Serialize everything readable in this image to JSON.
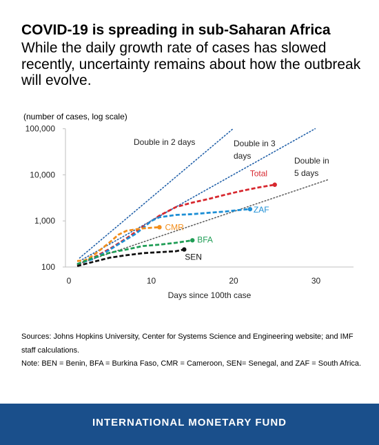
{
  "header": {
    "title": "COVID-19 is spreading in sub-Saharan Africa",
    "subtitle": "While the daily growth rate of cases has slowed recently, uncertainty remains about how the outbreak will evolve."
  },
  "chart_data": {
    "type": "line",
    "ylabel": "(number of cases, log scale)",
    "xlabel": "Days since 100th case",
    "x_ticks": [
      "0",
      "10",
      "20",
      "30"
    ],
    "y_ticks": [
      "100",
      "1,000",
      "10,000",
      "100,000"
    ],
    "xlim": [
      0,
      34
    ],
    "ylim": [
      100,
      100000
    ],
    "yscale": "log",
    "grid": false,
    "reference_lines": [
      {
        "label": "Double in 2 days",
        "doubling_days": 2,
        "color": "#1f5fa8"
      },
      {
        "label": "Double in 3 days",
        "doubling_days": 3,
        "color": "#1f5fa8"
      },
      {
        "label": "Double in 5 days",
        "doubling_days": 5,
        "color": "#606060"
      }
    ],
    "series": [
      {
        "name": "Total",
        "color": "#d7282f",
        "x": [
          1,
          3,
          5,
          7,
          9,
          11,
          13,
          15,
          17,
          19,
          21,
          23,
          25
        ],
        "y": [
          110,
          160,
          250,
          420,
          750,
          1300,
          2000,
          2500,
          3000,
          3700,
          4500,
          5300,
          6100
        ]
      },
      {
        "name": "ZAF",
        "color": "#1e8fd5",
        "x": [
          1,
          3,
          5,
          7,
          8,
          9,
          10,
          11,
          13,
          15,
          17,
          19,
          21,
          22
        ],
        "y": [
          116,
          150,
          240,
          400,
          510,
          700,
          1000,
          1200,
          1350,
          1400,
          1500,
          1600,
          1750,
          1800
        ]
      },
      {
        "name": "CMR",
        "color": "#f28e1c",
        "x": [
          1,
          2,
          3,
          4,
          5,
          6,
          7,
          8,
          9,
          10,
          11
        ],
        "y": [
          135,
          140,
          180,
          250,
          350,
          500,
          610,
          650,
          690,
          710,
          730
        ]
      },
      {
        "name": "BFA",
        "color": "#1f9d55",
        "x": [
          1,
          3,
          5,
          7,
          9,
          11,
          13,
          15
        ],
        "y": [
          115,
          160,
          205,
          240,
          285,
          305,
          335,
          380
        ]
      },
      {
        "name": "SEN",
        "color": "#111111",
        "x": [
          1,
          3,
          5,
          7,
          9,
          11,
          13,
          14
        ],
        "y": [
          105,
          130,
          160,
          180,
          200,
          210,
          220,
          240
        ]
      }
    ]
  },
  "notes": {
    "sources": "Sources: Johns Hopkins University, Center for Systems Science and Engineering website; and IMF staff calculations.",
    "note": "Note: BEN = Benin, BFA = Burkina Faso, CMR = Cameroon, SEN= Senegal, and ZAF = South Africa."
  },
  "footer": {
    "text": "INTERNATIONAL MONETARY FUND",
    "color": "#1a4f8b"
  }
}
